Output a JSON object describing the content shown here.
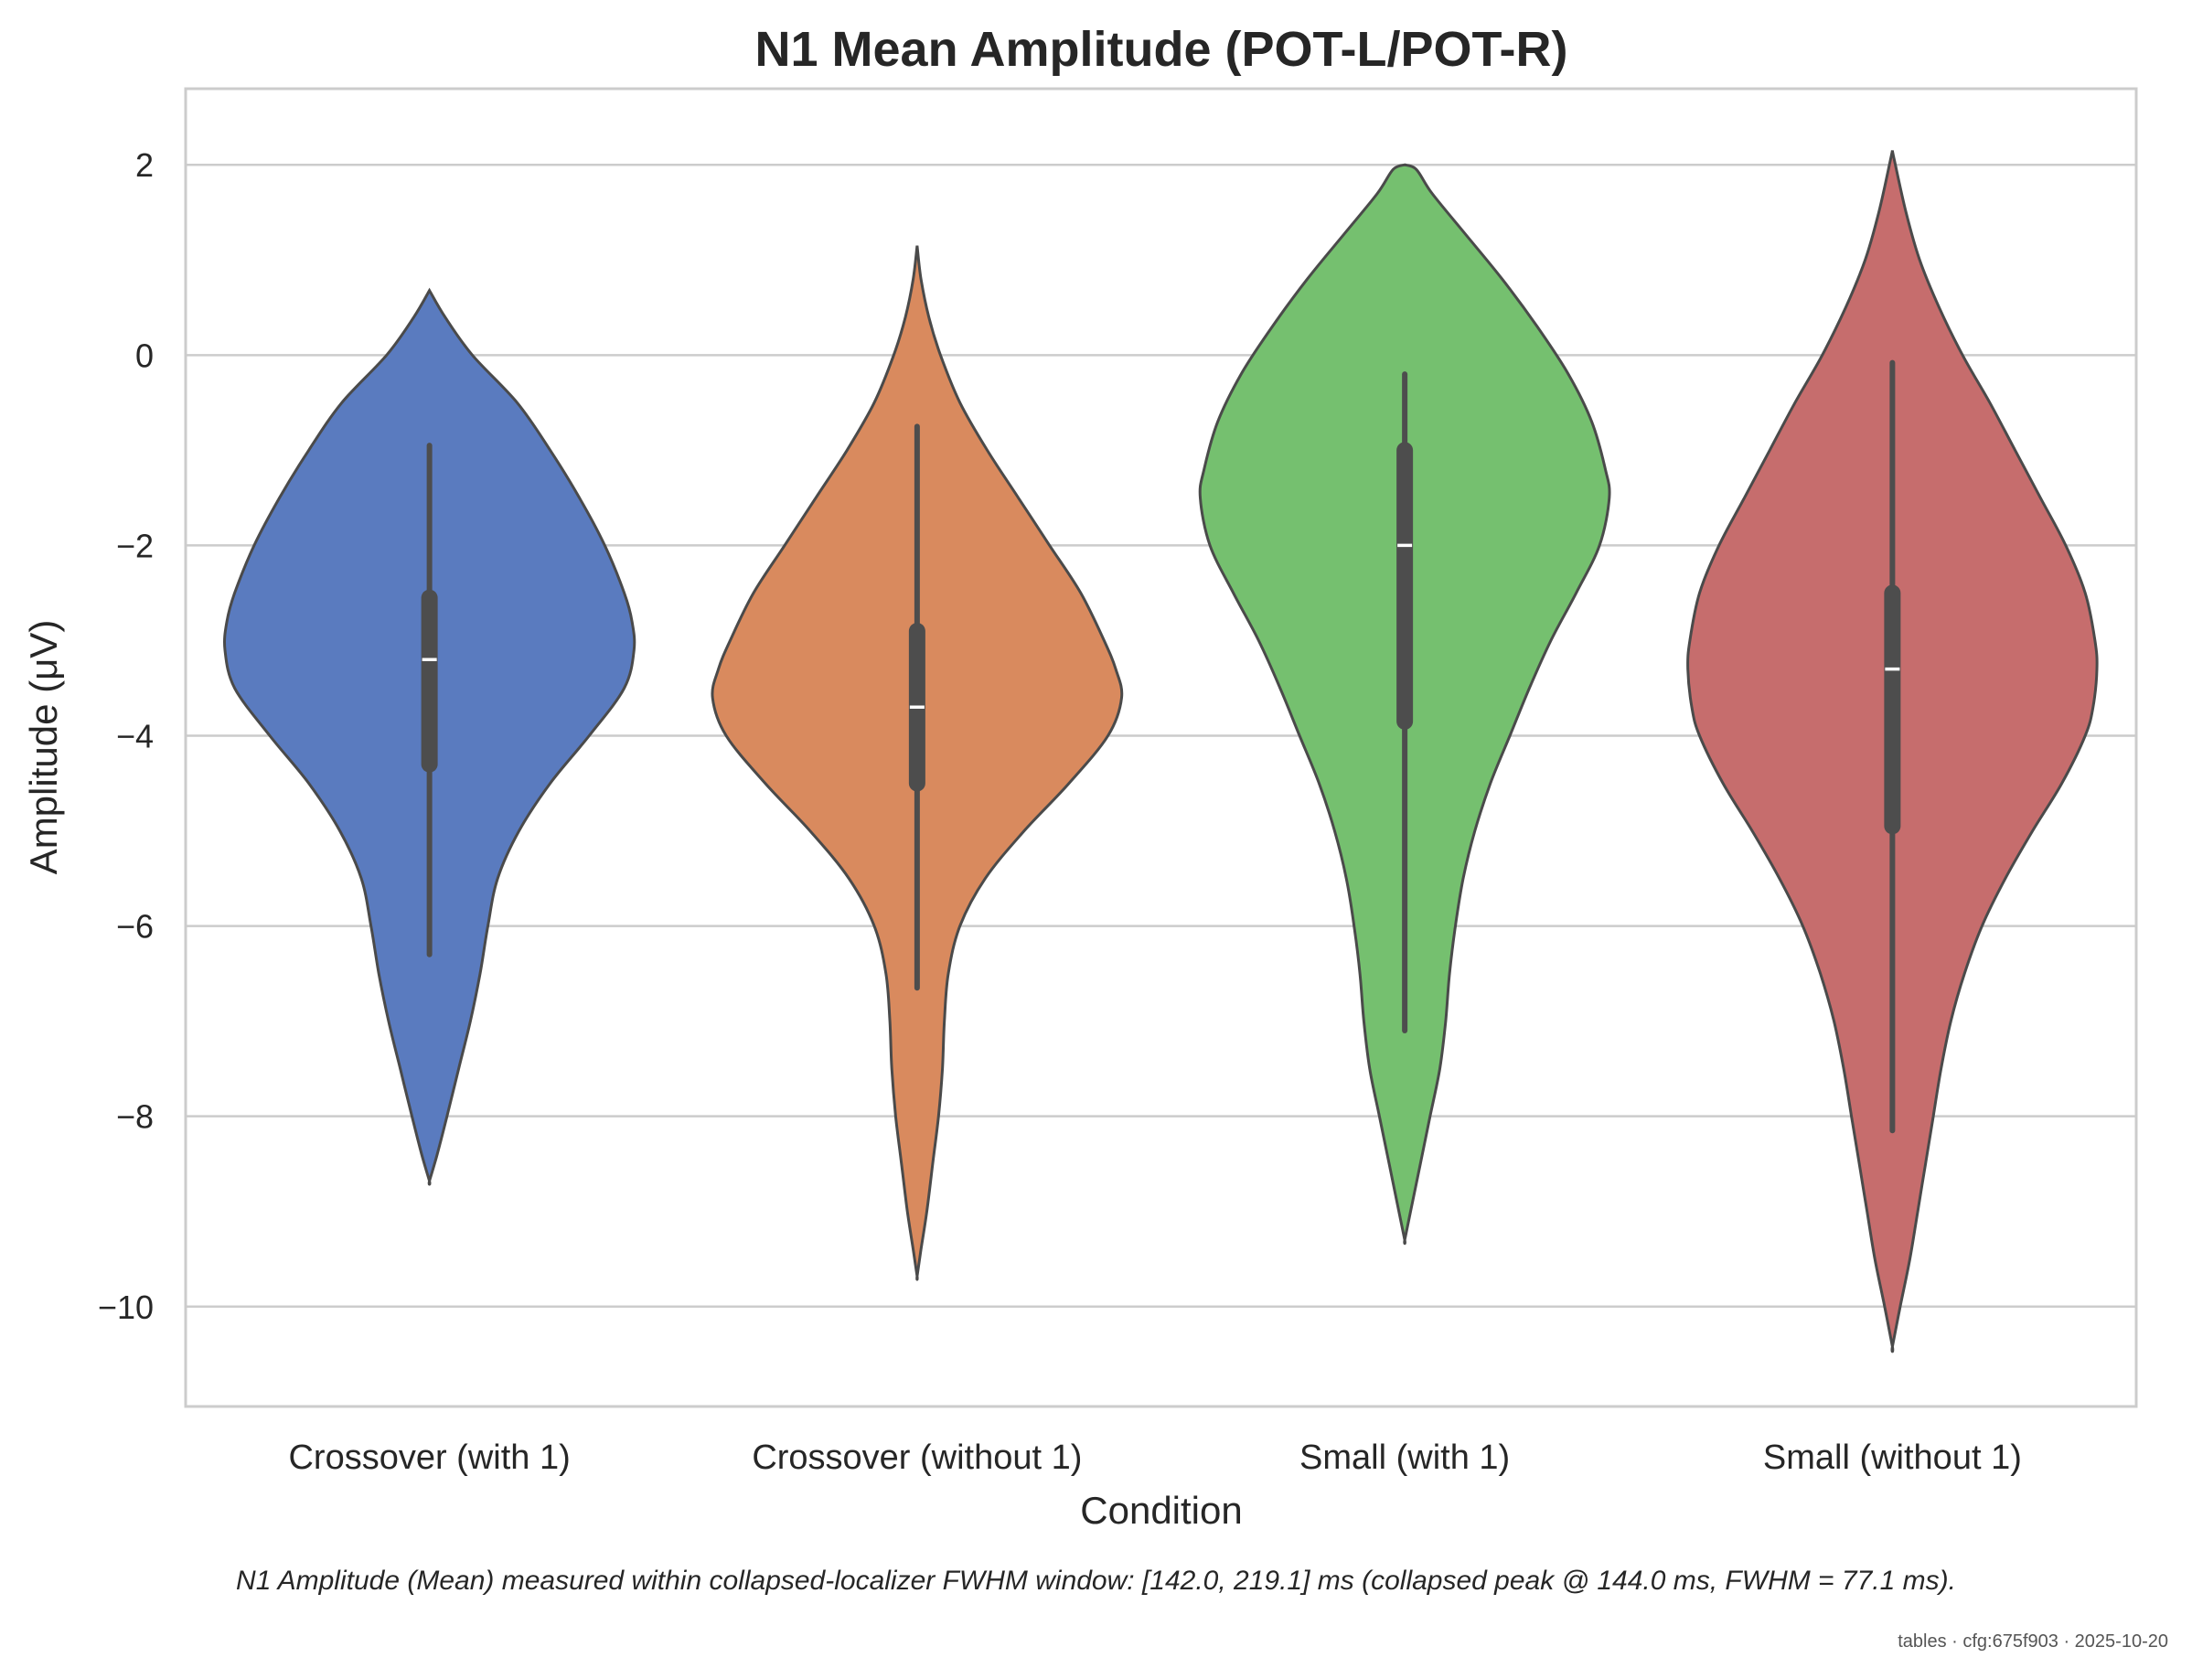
{
  "chart_data": {
    "type": "violin",
    "title": "N1 Mean Amplitude (POT-L/POT-R)",
    "xlabel": "Condition",
    "ylabel": "Amplitude (μV)",
    "ylim": [
      -11.05,
      2.8
    ],
    "yticks": [
      {
        "value": 2,
        "label": "2"
      },
      {
        "value": 0,
        "label": "0"
      },
      {
        "value": -2,
        "label": "−2"
      },
      {
        "value": -4,
        "label": "−4"
      },
      {
        "value": -6,
        "label": "−6"
      },
      {
        "value": -8,
        "label": "−8"
      },
      {
        "value": -10,
        "label": "−10"
      }
    ],
    "grid": "horizontal",
    "categories": [
      "Crossover (with 1)",
      "Crossover (without 1)",
      "Small (with 1)",
      "Small (without 1)"
    ],
    "series": [
      {
        "category": "Crossover (with 1)",
        "color": "#5a7bbf",
        "median": -3.2,
        "q1": -4.3,
        "q3": -2.55,
        "whisker_low": -6.3,
        "whisker_high": -0.95,
        "density": [
          [
            0.68,
            0.0
          ],
          [
            0.4,
            0.08
          ],
          [
            0.0,
            0.22
          ],
          [
            -0.5,
            0.45
          ],
          [
            -1.0,
            0.62
          ],
          [
            -1.5,
            0.77
          ],
          [
            -2.0,
            0.9
          ],
          [
            -2.5,
            1.0
          ],
          [
            -2.8,
            1.04
          ],
          [
            -3.1,
            1.05
          ],
          [
            -3.5,
            1.0
          ],
          [
            -4.0,
            0.82
          ],
          [
            -4.5,
            0.62
          ],
          [
            -5.0,
            0.46
          ],
          [
            -5.5,
            0.35
          ],
          [
            -6.0,
            0.3
          ],
          [
            -6.5,
            0.26
          ],
          [
            -7.0,
            0.21
          ],
          [
            -7.5,
            0.15
          ],
          [
            -8.0,
            0.09
          ],
          [
            -8.4,
            0.04
          ],
          [
            -8.68,
            0.0
          ]
        ]
      },
      {
        "category": "Crossover (without 1)",
        "color": "#d98a5e",
        "median": -3.7,
        "q1": -4.5,
        "q3": -2.9,
        "whisker_low": -6.65,
        "whisker_high": -0.75,
        "density": [
          [
            1.15,
            0.0
          ],
          [
            0.8,
            0.02
          ],
          [
            0.4,
            0.06
          ],
          [
            0.0,
            0.12
          ],
          [
            -0.5,
            0.22
          ],
          [
            -1.0,
            0.36
          ],
          [
            -1.5,
            0.52
          ],
          [
            -2.0,
            0.68
          ],
          [
            -2.5,
            0.84
          ],
          [
            -3.0,
            0.96
          ],
          [
            -3.3,
            1.02
          ],
          [
            -3.6,
            1.05
          ],
          [
            -4.0,
            0.98
          ],
          [
            -4.5,
            0.78
          ],
          [
            -5.0,
            0.55
          ],
          [
            -5.5,
            0.35
          ],
          [
            -6.0,
            0.22
          ],
          [
            -6.5,
            0.16
          ],
          [
            -7.0,
            0.14
          ],
          [
            -7.5,
            0.13
          ],
          [
            -8.0,
            0.11
          ],
          [
            -8.5,
            0.08
          ],
          [
            -9.0,
            0.05
          ],
          [
            -9.4,
            0.02
          ],
          [
            -9.68,
            0.0
          ]
        ]
      },
      {
        "category": "Small (with 1)",
        "color": "#75c06f",
        "median": -2.0,
        "q1": -3.85,
        "q3": -1.0,
        "whisker_low": -7.1,
        "whisker_high": -0.2,
        "density": [
          [
            2.0,
            0.0
          ],
          [
            1.95,
            0.06
          ],
          [
            1.7,
            0.14
          ],
          [
            1.3,
            0.3
          ],
          [
            0.8,
            0.5
          ],
          [
            0.3,
            0.68
          ],
          [
            -0.2,
            0.84
          ],
          [
            -0.7,
            0.96
          ],
          [
            -1.2,
            1.03
          ],
          [
            -1.5,
            1.05
          ],
          [
            -2.0,
            1.0
          ],
          [
            -2.5,
            0.88
          ],
          [
            -3.0,
            0.75
          ],
          [
            -3.5,
            0.64
          ],
          [
            -4.0,
            0.54
          ],
          [
            -4.5,
            0.44
          ],
          [
            -5.0,
            0.36
          ],
          [
            -5.5,
            0.3
          ],
          [
            -6.0,
            0.26
          ],
          [
            -6.5,
            0.23
          ],
          [
            -7.0,
            0.21
          ],
          [
            -7.5,
            0.18
          ],
          [
            -8.0,
            0.13
          ],
          [
            -8.5,
            0.08
          ],
          [
            -9.0,
            0.03
          ],
          [
            -9.3,
            0.0
          ]
        ]
      },
      {
        "category": "Small (without 1)",
        "color": "#c66d6d",
        "median": -3.3,
        "q1": -4.95,
        "q3": -2.5,
        "whisker_low": -8.15,
        "whisker_high": -0.08,
        "density": [
          [
            2.15,
            0.0
          ],
          [
            2.05,
            0.01
          ],
          [
            1.5,
            0.07
          ],
          [
            1.0,
            0.14
          ],
          [
            0.5,
            0.24
          ],
          [
            0.0,
            0.36
          ],
          [
            -0.5,
            0.5
          ],
          [
            -1.0,
            0.63
          ],
          [
            -1.5,
            0.76
          ],
          [
            -2.0,
            0.89
          ],
          [
            -2.5,
            0.99
          ],
          [
            -3.0,
            1.04
          ],
          [
            -3.3,
            1.05
          ],
          [
            -3.7,
            1.03
          ],
          [
            -4.0,
            0.99
          ],
          [
            -4.5,
            0.87
          ],
          [
            -5.0,
            0.72
          ],
          [
            -5.5,
            0.58
          ],
          [
            -6.0,
            0.46
          ],
          [
            -6.5,
            0.37
          ],
          [
            -7.0,
            0.3
          ],
          [
            -7.5,
            0.25
          ],
          [
            -8.0,
            0.21
          ],
          [
            -8.5,
            0.17
          ],
          [
            -9.0,
            0.13
          ],
          [
            -9.5,
            0.09
          ],
          [
            -10.0,
            0.04
          ],
          [
            -10.42,
            0.0
          ]
        ]
      }
    ]
  },
  "note": "N1 Amplitude (Mean) measured within collapsed-localizer FWHM window: [142.0, 219.1] ms (collapsed peak @ 144.0 ms, FWHM = 77.1 ms).",
  "footer": "tables · cfg:675f903 · 2025-10-20"
}
